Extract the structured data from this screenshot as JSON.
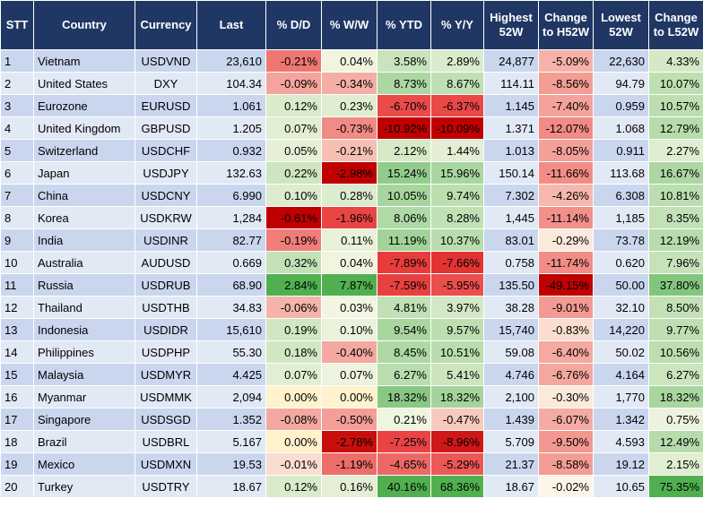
{
  "table": {
    "header": [
      "STT",
      "Country",
      "Currency",
      "Last",
      "% D/D",
      "% W/W",
      "% YTD",
      "% Y/Y",
      "Highest 52W",
      "Change to H52W",
      "Lowest 52W",
      "Change to L52W"
    ],
    "rows": [
      [
        "1",
        "Vietnam",
        "USDVND",
        "23,610",
        "-0.21%",
        "0.04%",
        "3.58%",
        "2.89%",
        "24,877",
        "-5.09%",
        "22,630",
        "4.33%"
      ],
      [
        "2",
        "United States",
        "DXY",
        "104.34",
        "-0.09%",
        "-0.34%",
        "8.73%",
        "8.67%",
        "114.11",
        "-8.56%",
        "94.79",
        "10.07%"
      ],
      [
        "3",
        "Eurozone",
        "EURUSD",
        "1.061",
        "0.12%",
        "0.23%",
        "-6.70%",
        "-6.37%",
        "1.145",
        "-7.40%",
        "0.959",
        "10.57%"
      ],
      [
        "4",
        "United Kingdom",
        "GBPUSD",
        "1.205",
        "0.07%",
        "-0.73%",
        "-10.92%",
        "-10.09%",
        "1.371",
        "-12.07%",
        "1.068",
        "12.79%"
      ],
      [
        "5",
        "Switzerland",
        "USDCHF",
        "0.932",
        "0.05%",
        "-0.21%",
        "2.12%",
        "1.44%",
        "1.013",
        "-8.05%",
        "0.911",
        "2.27%"
      ],
      [
        "6",
        "Japan",
        "USDJPY",
        "132.63",
        "0.22%",
        "-2.98%",
        "15.24%",
        "15.96%",
        "150.14",
        "-11.66%",
        "113.68",
        "16.67%"
      ],
      [
        "7",
        "China",
        "USDCNY",
        "6.990",
        "0.10%",
        "0.28%",
        "10.05%",
        "9.74%",
        "7.302",
        "-4.26%",
        "6.308",
        "10.81%"
      ],
      [
        "8",
        "Korea",
        "USDKRW",
        "1,284",
        "-0.61%",
        "-1.96%",
        "8.06%",
        "8.28%",
        "1,445",
        "-11.14%",
        "1,185",
        "8.35%"
      ],
      [
        "9",
        "India",
        "USDINR",
        "82.77",
        "-0.19%",
        "0.11%",
        "11.19%",
        "10.37%",
        "83.01",
        "-0.29%",
        "73.78",
        "12.19%"
      ],
      [
        "10",
        "Australia",
        "AUDUSD",
        "0.669",
        "0.32%",
        "0.04%",
        "-7.89%",
        "-7.66%",
        "0.758",
        "-11.74%",
        "0.620",
        "7.96%"
      ],
      [
        "11",
        "Russia",
        "USDRUB",
        "68.90",
        "2.84%",
        "7.87%",
        "-7.59%",
        "-5.95%",
        "135.50",
        "-49.15%",
        "50.00",
        "37.80%"
      ],
      [
        "12",
        "Thailand",
        "USDTHB",
        "34.83",
        "-0.06%",
        "0.03%",
        "4.81%",
        "3.97%",
        "38.28",
        "-9.01%",
        "32.10",
        "8.50%"
      ],
      [
        "13",
        "Indonesia",
        "USDIDR",
        "15,610",
        "0.19%",
        "0.10%",
        "9.54%",
        "9.57%",
        "15,740",
        "-0.83%",
        "14,220",
        "9.77%"
      ],
      [
        "14",
        "Philippines",
        "USDPHP",
        "55.30",
        "0.18%",
        "-0.40%",
        "8.45%",
        "10.51%",
        "59.08",
        "-6.40%",
        "50.02",
        "10.56%"
      ],
      [
        "15",
        "Malaysia",
        "USDMYR",
        "4.425",
        "0.07%",
        "0.07%",
        "6.27%",
        "5.41%",
        "4.746",
        "-6.76%",
        "4.164",
        "6.27%"
      ],
      [
        "16",
        "Myanmar",
        "USDMMK",
        "2,094",
        "0.00%",
        "0.00%",
        "18.32%",
        "18.32%",
        "2,100",
        "-0.30%",
        "1,770",
        "18.32%"
      ],
      [
        "17",
        "Singapore",
        "USDSGD",
        "1.352",
        "-0.08%",
        "-0.50%",
        "0.21%",
        "-0.47%",
        "1.439",
        "-6.07%",
        "1.342",
        "0.75%"
      ],
      [
        "18",
        "Brazil",
        "USDBRL",
        "5.167",
        "0.00%",
        "-2.78%",
        "-7.25%",
        "-8.96%",
        "5.709",
        "-9.50%",
        "4.593",
        "12.49%"
      ],
      [
        "19",
        "Mexico",
        "USDMXN",
        "19.53",
        "-0.01%",
        "-1.19%",
        "-4.65%",
        "-5.29%",
        "21.37",
        "-8.58%",
        "19.12",
        "2.15%"
      ],
      [
        "20",
        "Turkey",
        "USDTRY",
        "18.67",
        "0.12%",
        "0.16%",
        "40.16%",
        "68.36%",
        "18.67",
        "-0.02%",
        "10.65",
        "75.35%"
      ]
    ]
  }
}
